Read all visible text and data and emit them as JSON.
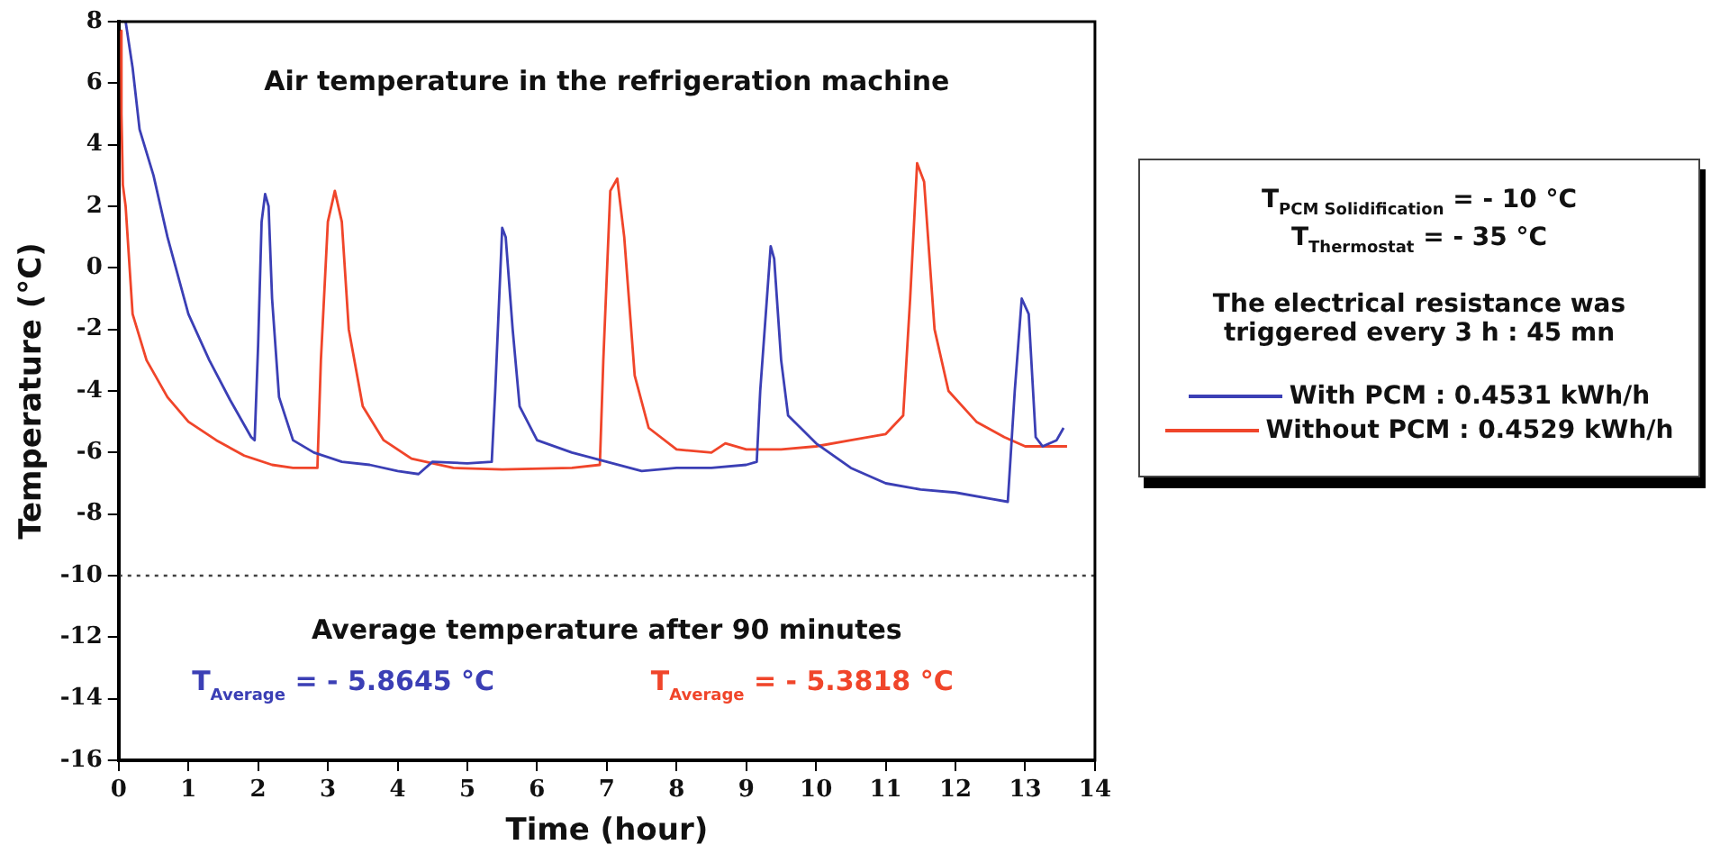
{
  "chart_data": {
    "type": "line",
    "title": "Air temperature in the refrigeration machine",
    "xlabel": "Time (hour)",
    "ylabel": "Temperature (°C)",
    "xlim": [
      0,
      14
    ],
    "xticks": [
      0,
      1,
      2,
      3,
      4,
      5,
      6,
      7,
      8,
      9,
      10,
      11,
      12,
      13,
      14
    ],
    "ylim": [
      -16,
      8
    ],
    "yticks": [
      -16,
      -14,
      -12,
      -10,
      -8,
      -6,
      -4,
      -2,
      0,
      2,
      4,
      6,
      8
    ],
    "grid": false,
    "legend": "right",
    "marker": "none",
    "line_style": "solid",
    "ref_lines": [
      {
        "axis": "y",
        "value": -10,
        "color": "#404040",
        "line_style": "dotted"
      }
    ],
    "annotations": [
      "Average temperature after 90 minutes",
      "T$_{Average}$ = - 5.8645 °C",
      "T$_{Average}$ = - 5.3818 °C",
      "T$_{PCM Solidification}$ = - 10 °C",
      "T$_{Thermostat}$ = - 35 °C",
      "The electrical resistance was triggered every 3 h : 45 mn"
    ],
    "series": [
      {
        "name": "With PCM : 0.4531 kWh/h",
        "color": "#3b3fb5",
        "x": [
          0.1,
          0.2,
          0.3,
          0.5,
          0.7,
          1.0,
          1.3,
          1.6,
          1.9,
          1.95,
          2.0,
          2.05,
          2.1,
          2.15,
          2.2,
          2.3,
          2.5,
          2.8,
          3.2,
          3.6,
          4.0,
          4.3,
          4.5,
          5.0,
          5.35,
          5.4,
          5.5,
          5.55,
          5.65,
          5.75,
          6.0,
          6.5,
          7.0,
          7.5,
          8.0,
          8.5,
          9.0,
          9.15,
          9.2,
          9.35,
          9.4,
          9.5,
          9.6,
          10.0,
          10.5,
          11.0,
          11.5,
          12.0,
          12.5,
          12.75,
          12.85,
          12.95,
          13.05,
          13.15,
          13.25,
          13.45,
          13.55
        ],
        "values": [
          8,
          6.5,
          4.5,
          3.0,
          1.0,
          -1.5,
          -3.0,
          -4.3,
          -5.5,
          -5.6,
          -2.5,
          1.5,
          2.4,
          2.0,
          -1.0,
          -4.2,
          -5.6,
          -6.0,
          -6.3,
          -6.4,
          -6.6,
          -6.7,
          -6.3,
          -6.35,
          -6.3,
          -4.0,
          1.3,
          1.0,
          -2.0,
          -4.5,
          -5.6,
          -6.0,
          -6.3,
          -6.6,
          -6.5,
          -6.5,
          -6.4,
          -6.3,
          -4.0,
          0.7,
          0.3,
          -3.0,
          -4.8,
          -5.7,
          -6.5,
          -7.0,
          -7.2,
          -7.3,
          -7.5,
          -7.6,
          -4.0,
          -1.0,
          -1.5,
          -5.5,
          -5.8,
          -5.6,
          -5.2
        ]
      },
      {
        "name": "Without PCM : 0.4529 kWh/h",
        "color": "#f0452a",
        "x": [
          0.03,
          0.04,
          0.06,
          0.1,
          0.2,
          0.4,
          0.7,
          1.0,
          1.4,
          1.8,
          2.2,
          2.5,
          2.85,
          2.9,
          3.0,
          3.1,
          3.2,
          3.3,
          3.5,
          3.8,
          4.2,
          4.8,
          5.5,
          6.5,
          6.9,
          6.95,
          7.05,
          7.15,
          7.25,
          7.4,
          7.6,
          8.0,
          8.5,
          8.7,
          9.0,
          9.5,
          10.0,
          10.5,
          11.0,
          11.25,
          11.35,
          11.45,
          11.55,
          11.7,
          11.9,
          12.3,
          12.7,
          13.0,
          13.6
        ],
        "values": [
          7.7,
          5,
          2.7,
          2.0,
          -1.5,
          -3.0,
          -4.2,
          -5.0,
          -5.6,
          -6.1,
          -6.4,
          -6.5,
          -6.5,
          -3.0,
          1.5,
          2.5,
          1.5,
          -2.0,
          -4.5,
          -5.6,
          -6.2,
          -6.5,
          -6.55,
          -6.5,
          -6.4,
          -3.0,
          2.5,
          2.9,
          1.0,
          -3.5,
          -5.2,
          -5.9,
          -6.0,
          -5.7,
          -5.9,
          -5.9,
          -5.8,
          -5.6,
          -5.4,
          -4.8,
          -1.0,
          3.4,
          2.8,
          -2.0,
          -4.0,
          -5.0,
          -5.5,
          -5.8,
          -5.8
        ]
      }
    ]
  }
}
